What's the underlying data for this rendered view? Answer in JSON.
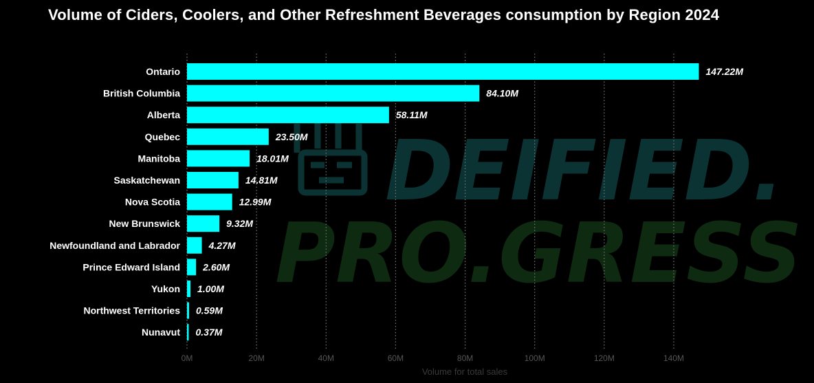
{
  "chart_data": {
    "type": "bar",
    "orientation": "horizontal",
    "title": "Volume of Ciders, Coolers, and Other Refreshment Beverages consumption by Region 2024",
    "xlabel": "Volume for total sales",
    "ylabel": "",
    "categories": [
      "Ontario",
      "British Columbia",
      "Alberta",
      "Quebec",
      "Manitoba",
      "Saskatchewan",
      "Nova Scotia",
      "New Brunswick",
      "Newfoundland and Labrador",
      "Prince Edward Island",
      "Yukon",
      "Northwest Territories",
      "Nunavut"
    ],
    "values": [
      147.22,
      84.1,
      58.11,
      23.5,
      18.01,
      14.81,
      12.99,
      9.32,
      4.27,
      2.6,
      1.0,
      0.59,
      0.37
    ],
    "value_labels": [
      "147.22M",
      "84.10M",
      "58.11M",
      "23.50M",
      "18.01M",
      "14.81M",
      "12.99M",
      "9.32M",
      "4.27M",
      "2.60M",
      "1.00M",
      "0.59M",
      "0.37M"
    ],
    "xlim": [
      0,
      140
    ],
    "x_ticks": [
      0,
      20,
      40,
      60,
      80,
      100,
      120,
      140
    ],
    "x_tick_labels": [
      "0M",
      "20M",
      "40M",
      "60M",
      "80M",
      "100M",
      "120M",
      "140M"
    ],
    "grid": true,
    "bar_color": "#00FFFF",
    "legend": "none"
  },
  "watermark": {
    "line1": "DEIFIED.",
    "line2": "PRO.GRESS",
    "color1": "#0b3333",
    "color2": "#0e2a10"
  }
}
